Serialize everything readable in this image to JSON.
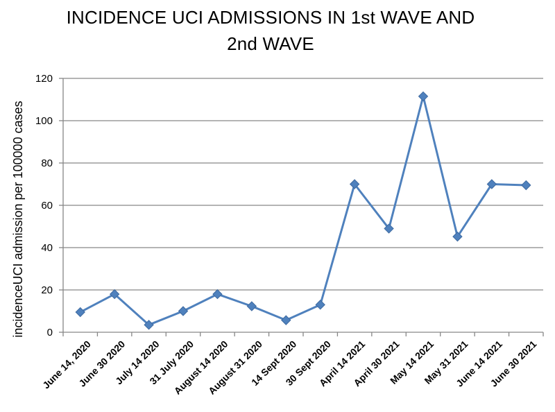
{
  "chart_data": {
    "type": "line",
    "title_line1": "INCIDENCE UCI ADMISSIONS IN 1st WAVE AND",
    "title_line2": "2nd WAVE",
    "ylabel": "incidenceUCI admission per 100000 cases",
    "xlabel": "",
    "ylim": [
      0,
      120
    ],
    "yticks": [
      0,
      20,
      40,
      60,
      80,
      100,
      120
    ],
    "grid": true,
    "categories": [
      "June 14, 2020",
      "June 30 2020",
      "July 14 2020",
      "31 July 2020",
      "August 14 2020",
      "August 31 2020",
      "14 Sept 2020",
      "30 Sept 2020",
      "April 14 2021",
      "April 30 2021",
      "May 14 2021",
      "May 31 2021",
      "June 14 2021",
      "June 30 2021"
    ],
    "series": [
      {
        "values": [
          9.5,
          18,
          3.5,
          10,
          18,
          12.3,
          5.7,
          13,
          70,
          49,
          111.5,
          45.2,
          70,
          69.5
        ],
        "color": "#4F81BD"
      }
    ]
  }
}
